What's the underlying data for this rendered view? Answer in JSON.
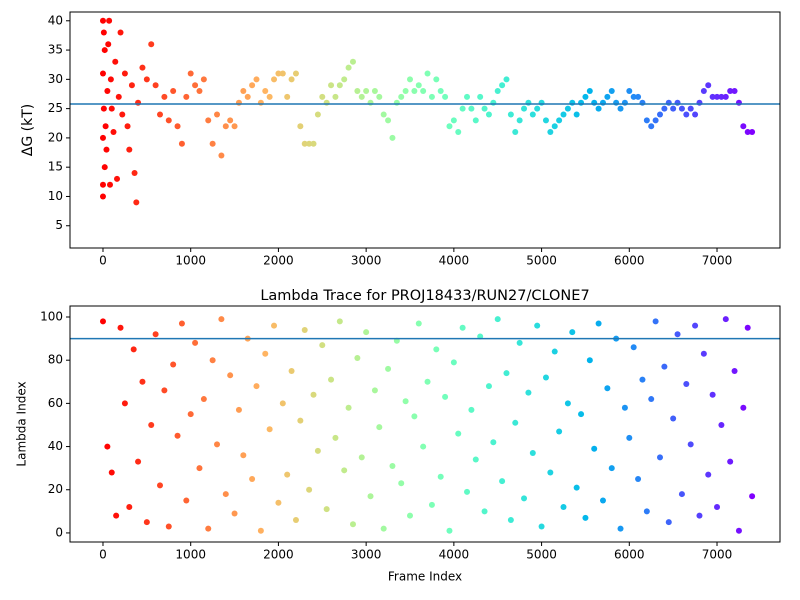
{
  "chart_data": [
    {
      "type": "scatter",
      "ylabel": "ΔG (kT)",
      "colormap": "rainbow_r",
      "hline": 25.8,
      "hline_color": "#1f77b4",
      "xlim": [
        -376,
        7718
      ],
      "ylim": [
        1.2,
        41.5
      ],
      "xticks": [
        0,
        1000,
        2000,
        3000,
        4000,
        5000,
        6000,
        7000
      ],
      "yticks": [
        5,
        10,
        15,
        20,
        25,
        30,
        35,
        40
      ],
      "x": [
        0,
        0,
        0,
        0,
        0,
        10,
        10,
        20,
        20,
        30,
        40,
        50,
        60,
        70,
        80,
        90,
        100,
        120,
        140,
        160,
        180,
        200,
        220,
        250,
        280,
        300,
        330,
        360,
        380,
        400,
        450,
        500,
        550,
        600,
        650,
        700,
        750,
        800,
        850,
        900,
        950,
        1000,
        1050,
        1100,
        1150,
        1200,
        1250,
        1300,
        1350,
        1400,
        1450,
        1500,
        1550,
        1600,
        1650,
        1700,
        1750,
        1800,
        1850,
        1900,
        1950,
        2000,
        2050,
        2100,
        2150,
        2200,
        2250,
        2300,
        2350,
        2400,
        2450,
        2500,
        2550,
        2600,
        2650,
        2700,
        2750,
        2800,
        2850,
        2900,
        2950,
        3000,
        3050,
        3100,
        3150,
        3200,
        3250,
        3300,
        3350,
        3400,
        3450,
        3500,
        3550,
        3600,
        3650,
        3700,
        3750,
        3800,
        3850,
        3900,
        3950,
        4000,
        4050,
        4100,
        4150,
        4200,
        4250,
        4300,
        4350,
        4400,
        4450,
        4500,
        4550,
        4600,
        4650,
        4700,
        4750,
        4800,
        4850,
        4900,
        4950,
        5000,
        5050,
        5100,
        5150,
        5200,
        5250,
        5300,
        5350,
        5400,
        5450,
        5500,
        5550,
        5600,
        5650,
        5700,
        5750,
        5800,
        5850,
        5900,
        5950,
        6000,
        6050,
        6100,
        6150,
        6200,
        6250,
        6300,
        6350,
        6400,
        6450,
        6500,
        6550,
        6600,
        6650,
        6700,
        6750,
        6800,
        6850,
        6900,
        6950,
        7000,
        7050,
        7100,
        7150,
        7200,
        7250,
        7300,
        7350,
        7400
      ],
      "values": [
        40,
        31,
        20,
        12,
        10,
        38,
        25,
        35,
        15,
        22,
        18,
        28,
        36,
        40,
        12,
        30,
        25,
        21,
        33,
        13,
        27,
        38,
        24,
        31,
        22,
        18,
        29,
        14,
        9,
        26,
        32,
        30,
        36,
        29,
        24,
        27,
        23,
        28,
        22,
        19,
        27,
        31,
        29,
        28,
        30,
        23,
        19,
        24,
        17,
        22,
        23,
        22,
        26,
        28,
        27,
        29,
        30,
        26,
        28,
        27,
        30,
        31,
        31,
        27,
        30,
        31,
        22,
        19,
        19,
        19,
        24,
        27,
        26,
        29,
        27,
        29,
        30,
        32,
        33,
        28,
        27,
        28,
        26,
        28,
        27,
        24,
        23,
        20,
        26,
        27,
        28,
        30,
        28,
        29,
        28,
        31,
        27,
        30,
        28,
        27,
        22,
        23,
        21,
        25,
        27,
        25,
        23,
        27,
        25,
        24,
        26,
        28,
        29,
        30,
        24,
        21,
        23,
        25,
        26,
        24,
        25,
        26,
        23,
        21,
        22,
        23,
        24,
        25,
        26,
        24,
        26,
        27,
        28,
        26,
        25,
        26,
        27,
        28,
        26,
        25,
        26,
        28,
        27,
        27,
        26,
        23,
        22,
        23,
        24,
        25,
        26,
        25,
        26,
        25,
        24,
        25,
        24,
        26,
        28,
        29,
        27,
        27,
        27,
        27,
        28,
        28,
        26,
        22,
        21,
        21
      ]
    },
    {
      "type": "scatter",
      "title": "Lambda Trace for PROJ18433/RUN27/CLONE7",
      "xlabel": "Frame Index",
      "ylabel": "Lambda Index",
      "colormap": "rainbow_r",
      "hline": 90,
      "hline_color": "#1f77b4",
      "xlim": [
        -376,
        7718
      ],
      "ylim": [
        -4.2,
        105.1
      ],
      "xticks": [
        0,
        1000,
        2000,
        3000,
        4000,
        5000,
        6000,
        7000
      ],
      "yticks": [
        0,
        20,
        40,
        60,
        80,
        100
      ],
      "x": [
        0,
        50,
        100,
        150,
        200,
        250,
        300,
        350,
        400,
        450,
        500,
        550,
        600,
        650,
        700,
        750,
        800,
        850,
        900,
        950,
        1000,
        1050,
        1100,
        1150,
        1200,
        1250,
        1300,
        1350,
        1400,
        1450,
        1500,
        1550,
        1600,
        1650,
        1700,
        1750,
        1800,
        1850,
        1900,
        1950,
        2000,
        2050,
        2100,
        2150,
        2200,
        2250,
        2300,
        2350,
        2400,
        2450,
        2500,
        2550,
        2600,
        2650,
        2700,
        2750,
        2800,
        2850,
        2900,
        2950,
        3000,
        3050,
        3100,
        3150,
        3200,
        3250,
        3300,
        3350,
        3400,
        3450,
        3500,
        3550,
        3600,
        3650,
        3700,
        3750,
        3800,
        3850,
        3900,
        3950,
        4000,
        4050,
        4100,
        4150,
        4200,
        4250,
        4300,
        4350,
        4400,
        4450,
        4500,
        4550,
        4600,
        4650,
        4700,
        4750,
        4800,
        4850,
        4900,
        4950,
        5000,
        5050,
        5100,
        5150,
        5200,
        5250,
        5300,
        5350,
        5400,
        5450,
        5500,
        5550,
        5600,
        5650,
        5700,
        5750,
        5800,
        5850,
        5900,
        5950,
        6000,
        6050,
        6100,
        6150,
        6200,
        6250,
        6300,
        6350,
        6400,
        6450,
        6500,
        6550,
        6600,
        6650,
        6700,
        6750,
        6800,
        6850,
        6900,
        6950,
        7000,
        7050,
        7100,
        7150,
        7200,
        7250,
        7300,
        7350,
        7400
      ],
      "values": [
        98,
        40,
        28,
        8,
        95,
        60,
        12,
        85,
        33,
        70,
        5,
        50,
        92,
        22,
        66,
        3,
        78,
        45,
        97,
        15,
        55,
        88,
        30,
        62,
        2,
        80,
        41,
        99,
        18,
        73,
        9,
        57,
        36,
        90,
        25,
        68,
        1,
        83,
        48,
        96,
        14,
        60,
        27,
        75,
        6,
        52,
        94,
        20,
        64,
        38,
        87,
        11,
        71,
        44,
        98,
        29,
        58,
        4,
        81,
        35,
        93,
        17,
        66,
        49,
        2,
        76,
        31,
        89,
        23,
        61,
        8,
        54,
        97,
        40,
        70,
        13,
        85,
        26,
        63,
        1,
        79,
        46,
        95,
        19,
        57,
        34,
        91,
        10,
        68,
        42,
        99,
        24,
        74,
        6,
        51,
        88,
        16,
        65,
        37,
        96,
        3,
        72,
        28,
        84,
        47,
        12,
        60,
        93,
        21,
        55,
        7,
        80,
        39,
        97,
        15,
        67,
        30,
        90,
        2,
        58,
        44,
        86,
        25,
        71,
        10,
        62,
        98,
        35,
        77,
        5,
        53,
        92,
        18,
        69,
        41,
        96,
        8,
        83,
        27,
        64,
        12,
        50,
        99,
        33,
        75,
        1,
        58,
        95,
        17
      ]
    }
  ]
}
